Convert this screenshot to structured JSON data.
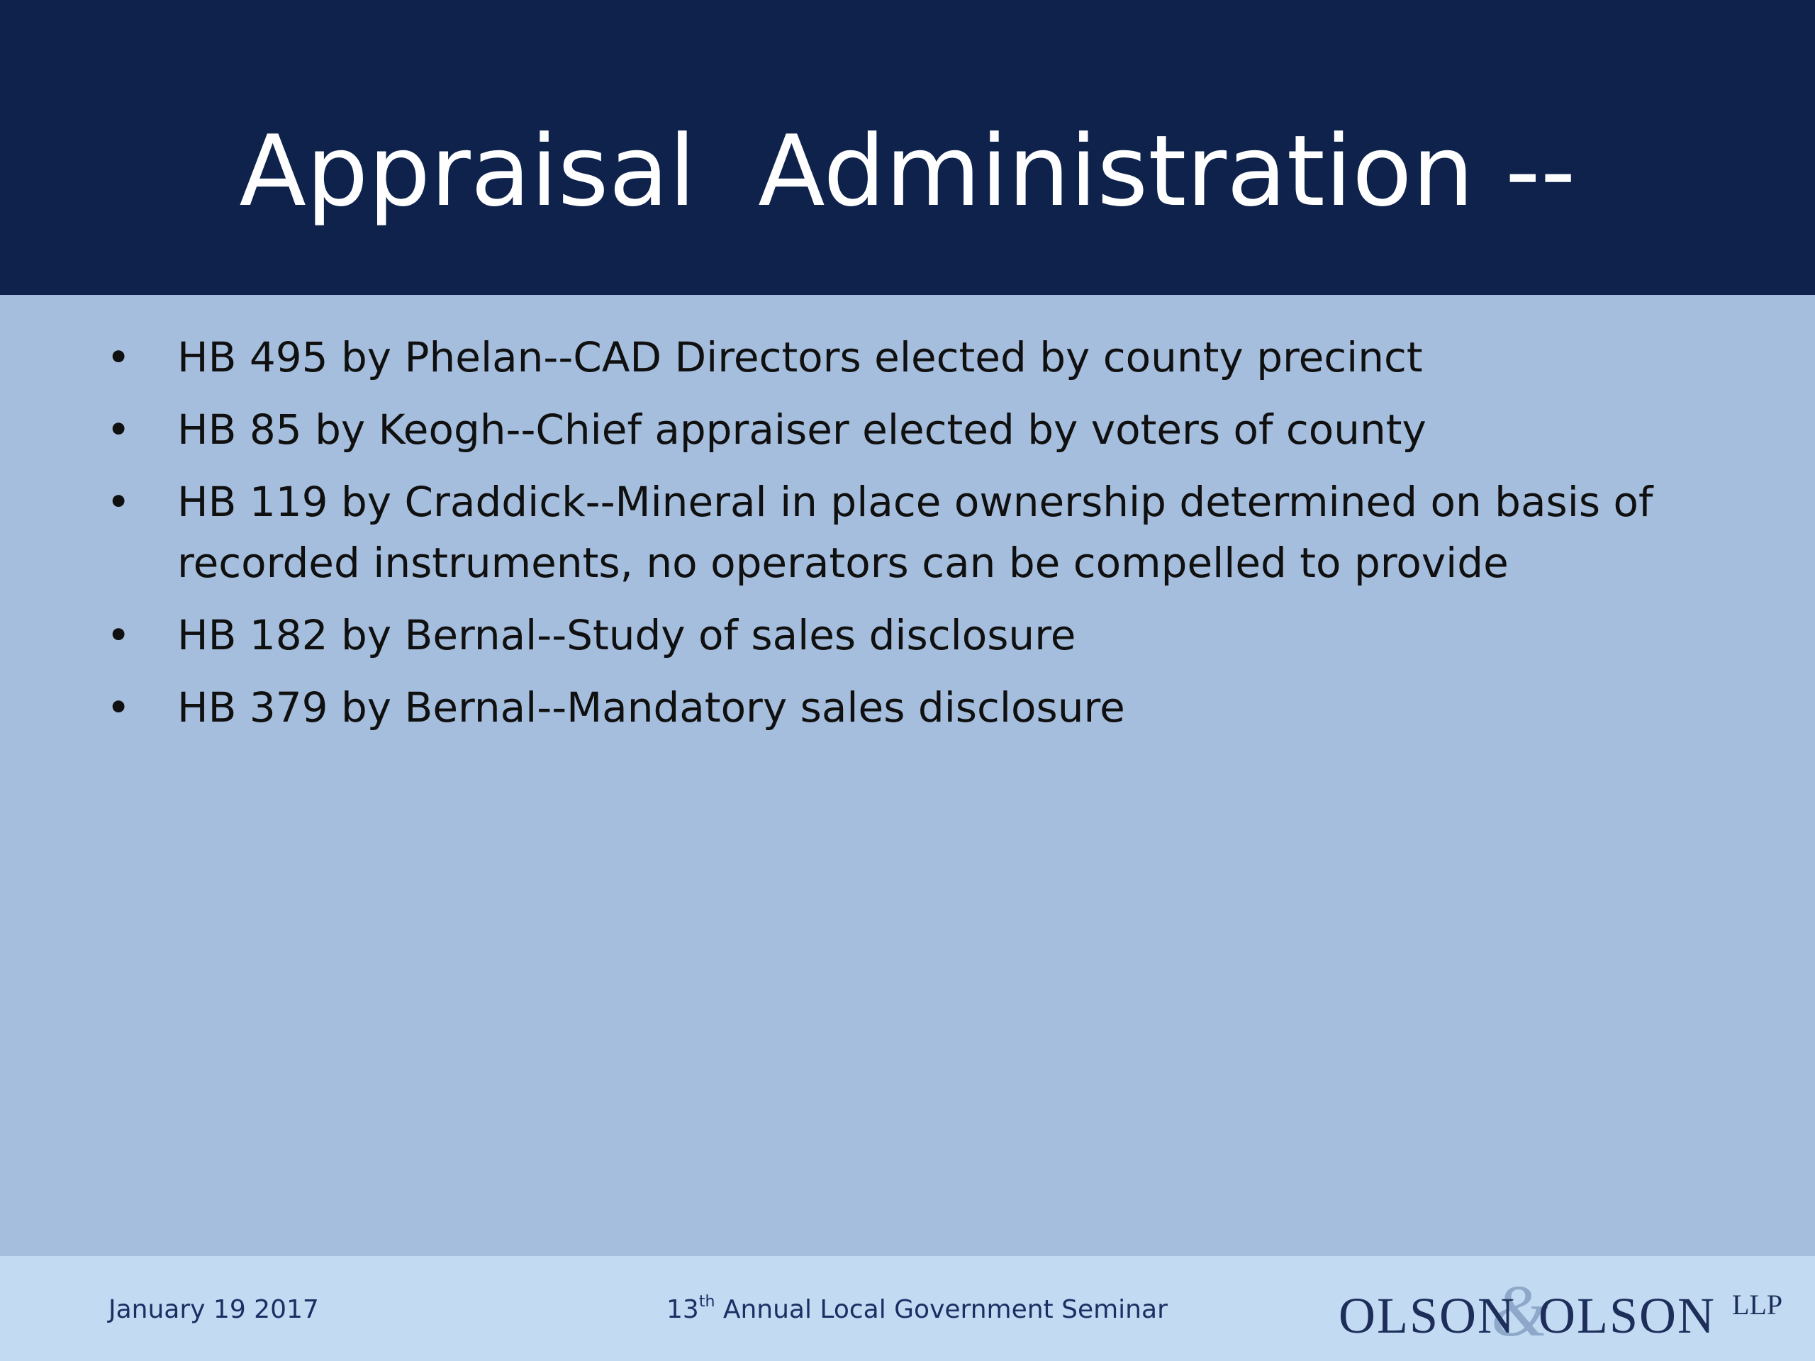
{
  "slide": {
    "title": "Appraisal  Administration --",
    "bullets": [
      "HB 495 by Phelan--CAD Directors elected by county precinct",
      "HB 85 by Keogh--Chief appraiser elected by voters of county",
      "HB 119 by Craddick--Mineral in place ownership determined on basis of recorded instruments, no operators can be compelled to provide",
      "HB 182 by Bernal--Study of sales disclosure",
      "HB 379 by Bernal--Mandatory sales disclosure"
    ],
    "bullet_glyph": "•"
  },
  "footer": {
    "date": "January 19 2017",
    "event_number": "13",
    "event_suffix": "th",
    "event_rest": " Annual Local Government Seminar",
    "logo_text": "OLSON&OLSON LLP"
  },
  "colors": {
    "header_bg": "#0e224c",
    "body_bg": "#a5bedd",
    "footer_bg": "#c3daf3",
    "footer_text": "#1b2f63",
    "logo_navy": "#1d2e5a",
    "logo_ampersand": "#8ea8c9"
  }
}
